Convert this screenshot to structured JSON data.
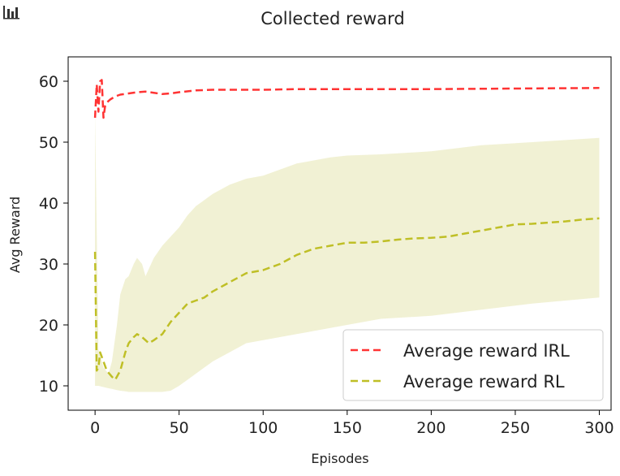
{
  "toolbar": {
    "icon": "bar-chart-icon"
  },
  "chart_data": {
    "type": "line",
    "title": "Collected reward",
    "xlabel": "Episodes",
    "ylabel": "Avg Reward",
    "xlim": [
      -16,
      307
    ],
    "ylim": [
      6,
      64
    ],
    "xticks": [
      0,
      50,
      100,
      150,
      200,
      250,
      300
    ],
    "yticks": [
      10,
      20,
      30,
      40,
      50,
      60
    ],
    "legend_position": "lower-right",
    "grid": false,
    "series": [
      {
        "name": "Average reward IRL",
        "style": "dashed",
        "color": "#ff3333",
        "x": [
          0,
          1,
          2,
          3,
          4,
          5,
          6,
          7,
          9,
          12,
          15,
          20,
          25,
          30,
          35,
          40,
          45,
          50,
          60,
          70,
          80,
          100,
          120,
          150,
          200,
          250,
          300
        ],
        "y": [
          54,
          59.5,
          55,
          60,
          60.2,
          54,
          56,
          56.5,
          57,
          57.5,
          57.8,
          58,
          58.2,
          58.3,
          58.1,
          57.9,
          58,
          58.2,
          58.5,
          58.6,
          58.6,
          58.6,
          58.7,
          58.7,
          58.7,
          58.8,
          58.9
        ]
      },
      {
        "name": "Average reward RL",
        "style": "dashed",
        "color": "#bfbf26",
        "x": [
          0,
          1,
          2,
          3,
          5,
          7,
          10,
          12,
          15,
          18,
          20,
          23,
          25,
          28,
          30,
          32,
          35,
          40,
          45,
          50,
          55,
          60,
          65,
          70,
          80,
          90,
          100,
          110,
          120,
          130,
          140,
          150,
          160,
          170,
          180,
          190,
          200,
          210,
          220,
          230,
          240,
          250,
          260,
          270,
          280,
          290,
          300
        ],
        "y": [
          32,
          12.5,
          13,
          15.5,
          14,
          12.5,
          11.5,
          11,
          12.5,
          15.5,
          17,
          18,
          18.5,
          18,
          17.5,
          17,
          17.5,
          18.5,
          20.5,
          22,
          23.5,
          24,
          24.5,
          25.5,
          27,
          28.5,
          29,
          30,
          31.5,
          32.5,
          33,
          33.5,
          33.5,
          33.7,
          34,
          34.2,
          34.3,
          34.5,
          35,
          35.5,
          36,
          36.5,
          36.6,
          36.8,
          37,
          37.3,
          37.5
        ]
      }
    ],
    "bands": [
      {
        "series": "Average reward RL",
        "color": "#eeeecc",
        "x": [
          0,
          2,
          5,
          8,
          10,
          13,
          15,
          18,
          20,
          23,
          25,
          28,
          30,
          35,
          40,
          45,
          50,
          55,
          60,
          70,
          80,
          90,
          100,
          120,
          140,
          150,
          170,
          200,
          230,
          260,
          300
        ],
        "upper": [
          55,
          16,
          13,
          12,
          14,
          20,
          25,
          27.5,
          28,
          30,
          31,
          30,
          28,
          31,
          33,
          34.5,
          36,
          38,
          39.5,
          41.5,
          43,
          44,
          44.5,
          46.5,
          47.5,
          47.8,
          48,
          48.5,
          49.5,
          50,
          50.7
        ],
        "lower": [
          10,
          10,
          9.8,
          9.6,
          9.5,
          9.3,
          9.2,
          9.1,
          9,
          9,
          9,
          9,
          9,
          9,
          9,
          9.2,
          10,
          11,
          12,
          14,
          15.5,
          17,
          17.5,
          18.5,
          19.5,
          20,
          21,
          21.5,
          22.5,
          23.5,
          24.5
        ]
      }
    ]
  }
}
